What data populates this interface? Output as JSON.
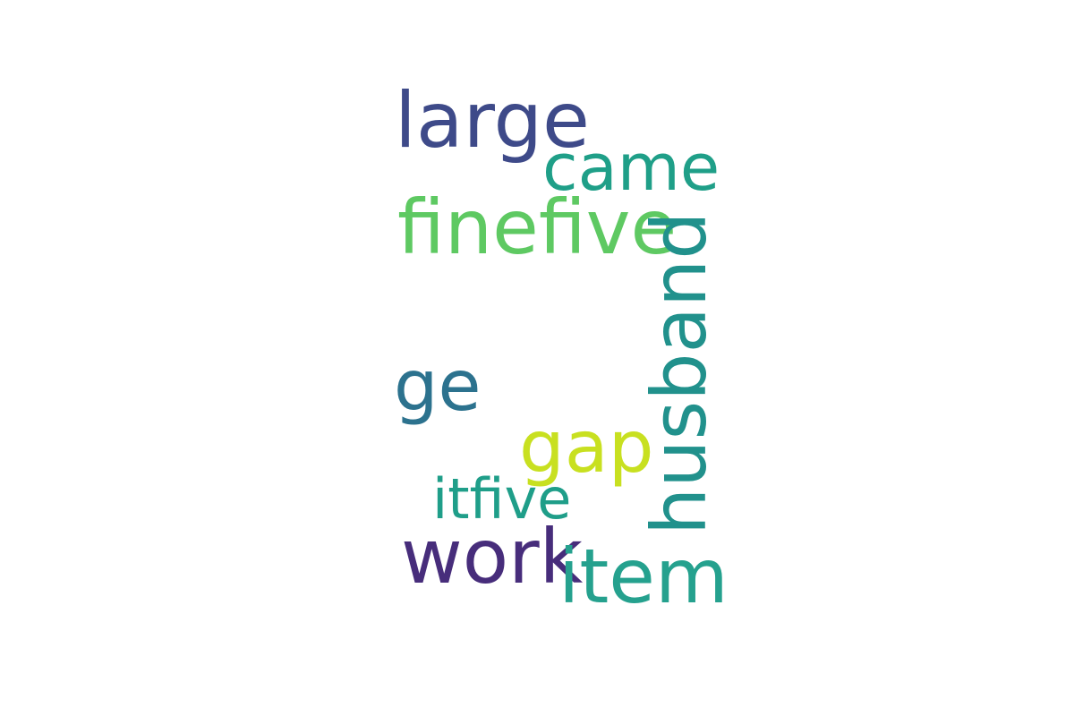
{
  "words": [
    {
      "text": "large",
      "color": "#3e4a89"
    },
    {
      "text": "came",
      "color": "#1f9f88"
    },
    {
      "text": "finefive",
      "color": "#5ec962"
    },
    {
      "text": "husband",
      "color": "#21918c"
    },
    {
      "text": "ge",
      "color": "#2c728e"
    },
    {
      "text": "gap",
      "color": "#c8e020"
    },
    {
      "text": "itfive",
      "color": "#1f9e89"
    },
    {
      "text": "work",
      "color": "#472d7b"
    },
    {
      "text": "item",
      "color": "#25a18e"
    }
  ]
}
